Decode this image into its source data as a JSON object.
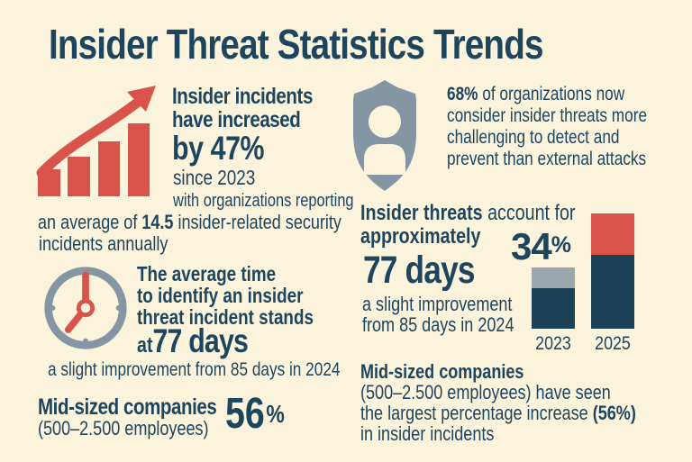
{
  "title": "Insider Threat Statistics Trends",
  "colors": {
    "background": "#FBF3DC",
    "navy": "#1D455E",
    "chart_navy": "#1B4257",
    "red": "#D8544B",
    "gray_blue": "#8495A3",
    "bar_gray": "#9BA7AD"
  },
  "icons": {
    "incidents": "growth-bar-chart-arrow-icon",
    "detection": "shield-user-icon",
    "time": "clock-icon"
  },
  "sections": {
    "incidents_increase": {
      "line1": "Insider incidents",
      "line2": "have increased",
      "highlight": "by 47%",
      "since": "since 2023",
      "detail_line1": "with organizations reporting",
      "detail_line2_pre": "an average of ",
      "detail_line2_value": "14.5",
      "detail_line2_post": " insider-related security",
      "detail_line3": "incidents annually"
    },
    "detection_challenge": {
      "stat": "68%",
      "line1_rest": " of organizations now",
      "line2": "consider insider threats more",
      "line3": "challenging to detect and",
      "line4": "prevent than external attacks"
    },
    "identify_time": {
      "line1": "The average time",
      "line2": "to identify an insider",
      "line3": "threat incident stands",
      "line4_pre": "at ",
      "line4_value": "77 days",
      "caption": "a slight improvement from 85 days in 2024"
    },
    "account_days": {
      "line1_bold": "Insider threats",
      "line1_rest": " account for",
      "line2": "approximately",
      "value": "77 days",
      "caption_line1": "a slight improvement",
      "caption_line2": "from 85 days in 2024"
    },
    "midsized_left": {
      "line1": "Mid-sized companies",
      "line2": "(500–2.500 employees)",
      "stat_number": "56",
      "stat_symbol": "%"
    },
    "midsized_right": {
      "line1": "Mid-sized companies",
      "line2": "(500–2.500 employees) have seen",
      "line3_pre": "the largest percentage increase ",
      "line3_bold": "(56%)",
      "line4": "in insider incidents"
    }
  },
  "chart_data": {
    "type": "bar",
    "subtype": "stacked",
    "categories": [
      "2023",
      "2025"
    ],
    "series": [
      {
        "name": "base segment (navy)",
        "values": [
          45,
          82
        ]
      },
      {
        "name": "top segment (highlight)",
        "values": [
          23,
          46
        ]
      }
    ],
    "value_unit": "relative bar height in px; no numeric axis shown",
    "annotation": {
      "number": "34",
      "symbol": "%",
      "text": "34%",
      "position": "left of 2025 bar"
    },
    "segment_colors": {
      "base": "#1B4257",
      "top_2023": "#9BA7AD",
      "top_2025": "#D8544B"
    },
    "xlabel": "",
    "ylabel": "",
    "legend": false,
    "grid": false
  }
}
